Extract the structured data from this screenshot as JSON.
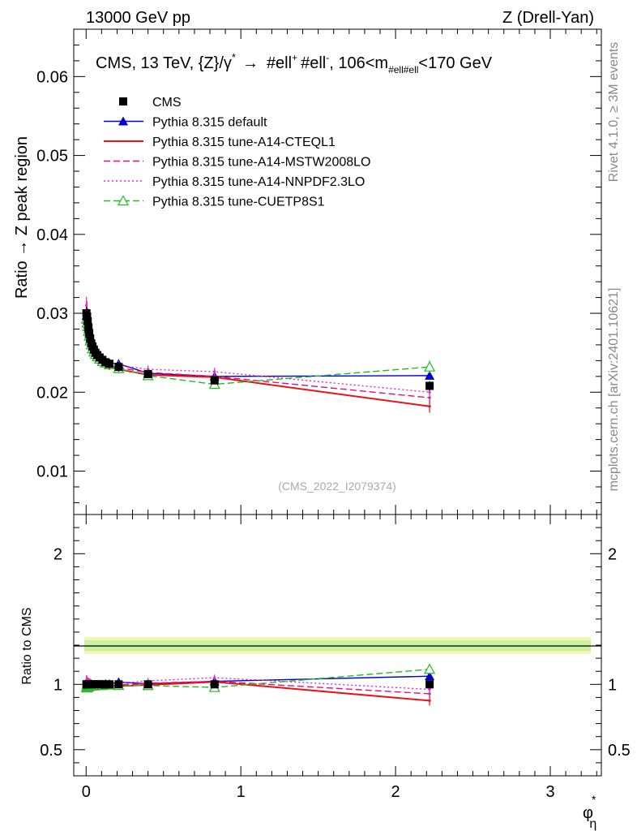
{
  "header": {
    "left": "13000 GeV pp",
    "right": "Z (Drell-Yan)"
  },
  "side_labels": {
    "rivet": "Rivet 4.1.0, ≥ 3M events",
    "mcplots": "mcplots.cern.ch [arXiv:2401.10621]"
  },
  "watermark": "(CMS_2022_I2079374)",
  "chart_data": {
    "type": "scatter",
    "title": "CMS, 13 TeV, {Z}/γ* → #ell+ #ell-, 106<m#ell#ell<170 GeV",
    "title_parts": {
      "main": "CMS, 13 TeV, {Z}/γ",
      "star": "*",
      "arrow": "→",
      "ell1": "#ell",
      "plus": "+",
      "ell2": "#ell",
      "minus": "-",
      "range_a": ", 106<m",
      "sub": "#ell#ell",
      "range_b": "<170 GeV"
    },
    "xlabel": "φ",
    "xlabel_sup": "*",
    "xlabel_sub": "η",
    "ylabel": "Ratio → Z peak region",
    "ratio_ylabel": "Ratio to CMS",
    "xlim": [
      -0.08,
      3.33
    ],
    "ylim": [
      0.0045,
      0.066
    ],
    "ratio_ylim": [
      0.3,
      2.3
    ],
    "x_ticks": [
      0,
      1,
      2,
      3
    ],
    "y_ticks": [
      0.01,
      0.02,
      0.03,
      0.04,
      0.05,
      0.06
    ],
    "y_tick_labels": [
      "0.01",
      "0.02",
      "0.03",
      "0.04",
      "0.05",
      "0.06"
    ],
    "ratio_ticks": [
      0.5,
      1,
      2
    ],
    "ratio_tick_labels": [
      "0.5",
      "1",
      "2"
    ],
    "x": [
      0.002,
      0.006,
      0.01,
      0.015,
      0.02,
      0.026,
      0.033,
      0.041,
      0.05,
      0.06,
      0.072,
      0.087,
      0.105,
      0.125,
      0.15,
      0.21,
      0.4,
      0.83,
      2.22
    ],
    "series": [
      {
        "name": "CMS",
        "style": "data",
        "color": "#000000",
        "values": [
          0.03,
          0.0296,
          0.029,
          0.0282,
          0.0275,
          0.0268,
          0.0262,
          0.0258,
          0.0254,
          0.025,
          0.0247,
          0.0244,
          0.0241,
          0.0238,
          0.0236,
          0.0232,
          0.0223,
          0.0215,
          0.0208
        ],
        "err": [
          0.0008,
          0.0008,
          0.0008,
          0.0007,
          0.0007,
          0.0007,
          0.0007,
          0.0006,
          0.0006,
          0.0006,
          0.0006,
          0.0006,
          0.0006,
          0.0006,
          0.0006,
          0.0006,
          0.0005,
          0.0005,
          0.0006
        ]
      },
      {
        "name": "Pythia 8.315 default",
        "style": "solid-tri",
        "color": "#0000cc",
        "values": [
          0.0297,
          0.0292,
          0.0287,
          0.028,
          0.0274,
          0.0267,
          0.0261,
          0.0256,
          0.0252,
          0.0249,
          0.0246,
          0.0243,
          0.0241,
          0.0239,
          0.0237,
          0.0236,
          0.0224,
          0.022,
          0.0221
        ],
        "err": [
          0.0008,
          0.0007,
          0.0007,
          0.0006,
          0.0006,
          0.0006,
          0.0005,
          0.0005,
          0.0005,
          0.0005,
          0.0004,
          0.0004,
          0.0004,
          0.0004,
          0.0004,
          0.0004,
          0.0004,
          0.0004,
          0.0005
        ]
      },
      {
        "name": "Pythia 8.315 tune-A14-CTEQL1",
        "style": "solid",
        "color": "#ee1111",
        "values": [
          0.0301,
          0.0296,
          0.029,
          0.0283,
          0.0276,
          0.027,
          0.0266,
          0.026,
          0.0255,
          0.025,
          0.0245,
          0.0241,
          0.0237,
          0.0234,
          0.0233,
          0.0229,
          0.0222,
          0.0219,
          0.0182
        ],
        "err": [
          0.0009,
          0.0008,
          0.0008,
          0.0007,
          0.0007,
          0.0007,
          0.0006,
          0.0006,
          0.0006,
          0.0005,
          0.0005,
          0.0005,
          0.0005,
          0.0005,
          0.0005,
          0.0005,
          0.0005,
          0.0005,
          0.0008
        ]
      },
      {
        "name": "Pythia 8.315 tune-A14-MSTW2008LO",
        "style": "dashed",
        "color": "#dd1177",
        "values": [
          0.0298,
          0.029,
          0.0286,
          0.0279,
          0.0271,
          0.0264,
          0.0259,
          0.0255,
          0.025,
          0.0248,
          0.0243,
          0.024,
          0.0238,
          0.0236,
          0.0234,
          0.0231,
          0.0225,
          0.022,
          0.0193
        ],
        "err": [
          0.001,
          0.0009,
          0.0009,
          0.0008,
          0.0008,
          0.0007,
          0.0007,
          0.0007,
          0.0006,
          0.0006,
          0.0006,
          0.0006,
          0.0006,
          0.0005,
          0.0005,
          0.0005,
          0.0005,
          0.0005,
          0.0008
        ]
      },
      {
        "name": "Pythia 8.315 tune-A14-NNPDF2.3LO",
        "style": "dotted",
        "color": "#ee22cc",
        "values": [
          0.031,
          0.0305,
          0.0295,
          0.0287,
          0.028,
          0.0272,
          0.0263,
          0.0259,
          0.0254,
          0.0251,
          0.0248,
          0.0244,
          0.0241,
          0.0238,
          0.0236,
          0.0234,
          0.0229,
          0.0226,
          0.02
        ],
        "err": [
          0.0011,
          0.001,
          0.001,
          0.0009,
          0.0008,
          0.0008,
          0.0008,
          0.0007,
          0.0007,
          0.0007,
          0.0006,
          0.0006,
          0.0006,
          0.0006,
          0.0006,
          0.0006,
          0.0005,
          0.0005,
          0.0009
        ]
      },
      {
        "name": "Pythia 8.315 tune-CUETP8S1",
        "style": "dashed-opentri",
        "color": "#22bb22",
        "values": [
          0.0293,
          0.0288,
          0.0283,
          0.0277,
          0.0271,
          0.0265,
          0.026,
          0.0255,
          0.0251,
          0.0248,
          0.0245,
          0.0242,
          0.0239,
          0.0237,
          0.0235,
          0.023,
          0.0221,
          0.021,
          0.0232
        ],
        "err": [
          0.0009,
          0.0008,
          0.0008,
          0.0007,
          0.0007,
          0.0007,
          0.0006,
          0.0006,
          0.0006,
          0.0006,
          0.0005,
          0.0005,
          0.0005,
          0.0005,
          0.0005,
          0.0005,
          0.0005,
          0.0005,
          0.0008
        ]
      }
    ]
  }
}
